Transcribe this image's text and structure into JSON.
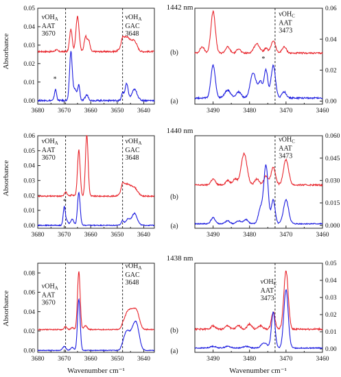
{
  "figure": {
    "y_axis_label": "Absorbance",
    "x_axis_label": "Wavenumber cm⁻¹"
  },
  "colors": {
    "trace_b": "#e8232a",
    "trace_a": "#1a1adf",
    "axis": "#222222",
    "marker": "#666666"
  },
  "chart_data": [
    {
      "type": "line",
      "row": 0,
      "side": "left",
      "title": "1442 nm",
      "xlim": [
        3680,
        3636
      ],
      "ylim": [
        -0.002,
        0.05
      ],
      "xticks": [
        3680,
        3670,
        3660,
        3650,
        3640
      ],
      "yticks": [
        "0.00",
        "0.01",
        "0.02",
        "0.03",
        "0.04",
        "0.05"
      ],
      "vlines": [
        3669.5,
        3648
      ],
      "annotations": [
        {
          "x": 3678.5,
          "y": 0.044,
          "lines": [
            "νOH",
            "AAT",
            "3670"
          ],
          "sub": "A"
        },
        {
          "x": 3647.0,
          "y": 0.044,
          "lines": [
            "νOH",
            "GAC",
            "3648"
          ],
          "sub": "A"
        }
      ],
      "series_labels": [
        {
          "text": "(b)",
          "ref": "b"
        },
        {
          "text": "(a)",
          "ref": "a"
        }
      ],
      "asterisks": [
        {
          "x": 3673.5,
          "y": 0.0105
        }
      ],
      "series": [
        {
          "key": "b",
          "baseline": 0.0265,
          "noise": 0.0004,
          "peaks": [
            [
              3673,
              0.001,
              0.5
            ],
            [
              3667.5,
              0.012,
              0.5
            ],
            [
              3665.0,
              0.019,
              0.6
            ],
            [
              3662.0,
              0.008,
              0.5
            ],
            [
              3660.8,
              0.006,
              0.5
            ],
            [
              3648.0,
              0.003,
              0.5
            ],
            [
              3646.5,
              0.008,
              1.5
            ],
            [
              3643.5,
              0.005,
              1.0
            ]
          ]
        },
        {
          "key": "a",
          "baseline": 0.0,
          "noise": 0.0004,
          "peaks": [
            [
              3673.3,
              0.006,
              0.4
            ],
            [
              3667.5,
              0.026,
              0.5
            ],
            [
              3666.0,
              0.006,
              0.7
            ],
            [
              3664.5,
              0.008,
              0.4
            ],
            [
              3661.5,
              0.003,
              0.6
            ],
            [
              3648.0,
              0.004,
              0.4
            ],
            [
              3646.5,
              0.009,
              0.6
            ],
            [
              3643.5,
              0.006,
              1.0
            ]
          ]
        }
      ]
    },
    {
      "type": "line",
      "row": 0,
      "side": "right",
      "title": "",
      "xlim": [
        3495,
        3460
      ],
      "ylim": [
        -0.002,
        0.06
      ],
      "xticks": [
        3490,
        3480,
        3470,
        3460
      ],
      "yticks": [
        "0.00",
        "0.02",
        "0.04",
        "0.06"
      ],
      "vlines": [
        3473
      ],
      "annotations": [
        {
          "x": 3472,
          "y": 0.055,
          "lines": [
            "νOH",
            "AAT",
            "3473"
          ],
          "sub": "C"
        }
      ],
      "series_labels": [],
      "asterisks": [
        {
          "x": 3476.2,
          "y": 0.026
        }
      ],
      "series": [
        {
          "key": "b",
          "baseline": 0.031,
          "noise": 0.0005,
          "peaks": [
            [
              3490,
              0.027,
              0.6
            ],
            [
              3493,
              0.004,
              0.6
            ],
            [
              3486,
              0.004,
              0.6
            ],
            [
              3483,
              0.003,
              0.5
            ],
            [
              3478,
              0.006,
              0.8
            ],
            [
              3475.5,
              0.003,
              0.5
            ],
            [
              3473.5,
              0.008,
              0.6
            ],
            [
              3470.5,
              0.004,
              0.6
            ]
          ]
        },
        {
          "key": "a",
          "baseline": 0.002,
          "noise": 0.0005,
          "peaks": [
            [
              3490,
              0.021,
              0.6
            ],
            [
              3486,
              0.005,
              0.8
            ],
            [
              3483,
              0.004,
              0.7
            ],
            [
              3479,
              0.016,
              0.8
            ],
            [
              3477,
              0.01,
              0.6
            ],
            [
              3475.5,
              0.018,
              0.5
            ],
            [
              3473.5,
              0.021,
              0.6
            ],
            [
              3470.5,
              0.004,
              0.6
            ]
          ]
        }
      ]
    },
    {
      "type": "line",
      "row": 1,
      "side": "left",
      "title": "1440 nm",
      "xlim": [
        3680,
        3636
      ],
      "ylim": [
        -0.002,
        0.06
      ],
      "xticks": [
        3680,
        3670,
        3660,
        3650,
        3640
      ],
      "yticks": [
        "0.00",
        "0.01",
        "0.02",
        "0.03",
        "0.04",
        "0.05",
        "0.06"
      ],
      "vlines": [
        3669.5,
        3648
      ],
      "annotations": [
        {
          "x": 3678.5,
          "y": 0.055,
          "lines": [
            "νOH",
            "AAT",
            "3670"
          ],
          "sub": "A"
        },
        {
          "x": 3647.0,
          "y": 0.055,
          "lines": [
            "νOH",
            "GAC",
            "3648"
          ],
          "sub": "A"
        }
      ],
      "series_labels": [
        {
          "text": "(b)",
          "ref": "b"
        },
        {
          "text": "(a)",
          "ref": "a"
        }
      ],
      "asterisks": [
        {
          "x": 3669.8,
          "y": 0.0145
        }
      ],
      "series": [
        {
          "key": "b",
          "baseline": 0.0195,
          "noise": 0.0004,
          "peaks": [
            [
              3669.5,
              0.003,
              0.5
            ],
            [
              3667,
              0.001,
              0.5
            ],
            [
              3664.5,
              0.031,
              0.5
            ],
            [
              3661.5,
              0.041,
              0.5
            ],
            [
              3648.0,
              0.004,
              0.5
            ],
            [
              3646.5,
              0.008,
              1.5
            ],
            [
              3643.5,
              0.005,
              1.2
            ]
          ]
        },
        {
          "key": "a",
          "baseline": 0.0,
          "noise": 0.0003,
          "peaks": [
            [
              3670.0,
              0.012,
              0.4
            ],
            [
              3669.0,
              0.003,
              0.5
            ],
            [
              3667.0,
              0.004,
              0.6
            ],
            [
              3664.5,
              0.022,
              0.5
            ],
            [
              3648.0,
              0.003,
              0.5
            ],
            [
              3646.0,
              0.004,
              0.8
            ],
            [
              3643.5,
              0.008,
              1.0
            ]
          ]
        }
      ]
    },
    {
      "type": "line",
      "row": 1,
      "side": "right",
      "title": "",
      "xlim": [
        3495,
        3460
      ],
      "ylim": [
        -0.002,
        0.06
      ],
      "xticks": [
        3490,
        3480,
        3470,
        3460
      ],
      "yticks": [
        "0.000",
        "0.015",
        "0.030",
        "0.045",
        "0.060"
      ],
      "vlines": [
        3473
      ],
      "annotations": [
        {
          "x": 3472,
          "y": 0.056,
          "lines": [
            "νOH",
            "AAT",
            "3473"
          ],
          "sub": "C"
        }
      ],
      "series_labels": [],
      "asterisks": [],
      "series": [
        {
          "key": "b",
          "baseline": 0.027,
          "noise": 0.0005,
          "peaks": [
            [
              3490,
              0.004,
              0.6
            ],
            [
              3486,
              0.003,
              0.6
            ],
            [
              3484,
              0.004,
              0.6
            ],
            [
              3481.5,
              0.021,
              0.8
            ],
            [
              3478,
              0.004,
              0.6
            ],
            [
              3475.5,
              0.006,
              0.6
            ],
            [
              3473.5,
              0.012,
              0.6
            ],
            [
              3470,
              0.017,
              0.7
            ]
          ]
        },
        {
          "key": "a",
          "baseline": 0.001,
          "noise": 0.0004,
          "peaks": [
            [
              3490,
              0.004,
              0.6
            ],
            [
              3486,
              0.002,
              0.6
            ],
            [
              3483,
              0.002,
              0.6
            ],
            [
              3481,
              0.003,
              0.6
            ],
            [
              3477,
              0.01,
              0.6
            ],
            [
              3475.5,
              0.039,
              0.6
            ],
            [
              3473.5,
              0.016,
              0.5
            ],
            [
              3470,
              0.016,
              0.7
            ]
          ]
        }
      ]
    },
    {
      "type": "line",
      "row": 2,
      "side": "left",
      "title": "1438 nm",
      "xlim": [
        3680,
        3636
      ],
      "ylim": [
        -0.002,
        0.09
      ],
      "xticks": [
        3680,
        3670,
        3660,
        3650,
        3640
      ],
      "yticks": [
        "0.00",
        "0.02",
        "0.04",
        "0.06",
        "0.08"
      ],
      "vlines": [
        3669.5,
        3648
      ],
      "annotations": [
        {
          "x": 3678.5,
          "y": 0.064,
          "lines": [
            "νOH",
            "AAT",
            "3670"
          ],
          "sub": "A"
        },
        {
          "x": 3647.0,
          "y": 0.085,
          "lines": [
            "νOH",
            "GAC",
            "3648"
          ],
          "sub": "A"
        }
      ],
      "series_labels": [
        {
          "text": "(b)",
          "ref": "b"
        },
        {
          "text": "(a)",
          "ref": "a"
        }
      ],
      "asterisks": [],
      "series": [
        {
          "key": "b",
          "baseline": 0.0215,
          "noise": 0.0005,
          "peaks": [
            [
              3669.5,
              0.003,
              0.5
            ],
            [
              3667.0,
              0.002,
              0.5
            ],
            [
              3664.5,
              0.06,
              0.5
            ],
            [
              3662.0,
              0.004,
              0.6
            ],
            [
              3648.0,
              0.003,
              0.5
            ],
            [
              3646.5,
              0.013,
              1.0
            ],
            [
              3644.5,
              0.018,
              1.2
            ],
            [
              3642.5,
              0.015,
              1.0
            ]
          ]
        },
        {
          "key": "a",
          "baseline": 0.0,
          "noise": 0.0004,
          "peaks": [
            [
              3670.0,
              0.004,
              0.6
            ],
            [
              3667.0,
              0.003,
              0.6
            ],
            [
              3664.5,
              0.053,
              0.5
            ],
            [
              3648.0,
              0.003,
              0.6
            ],
            [
              3646.5,
              0.018,
              1.0
            ],
            [
              3644.0,
              0.02,
              1.2
            ],
            [
              3642.5,
              0.018,
              1.0
            ]
          ]
        }
      ]
    },
    {
      "type": "line",
      "row": 2,
      "side": "right",
      "title": "",
      "xlim": [
        3495,
        3460
      ],
      "ylim": [
        -0.002,
        0.05
      ],
      "xticks": [
        3490,
        3480,
        3470,
        3460
      ],
      "yticks": [
        "0.00",
        "0.01",
        "0.02",
        "0.03",
        "0.04",
        "0.05"
      ],
      "vlines": [
        3473
      ],
      "annotations": [
        {
          "x": 3477,
          "y": 0.038,
          "lines": [
            "νOH",
            "AAT",
            "3473"
          ],
          "sub": "C"
        }
      ],
      "series_labels": [],
      "asterisks": [],
      "series": [
        {
          "key": "b",
          "baseline": 0.0115,
          "noise": 0.0005,
          "peaks": [
            [
              3490,
              0.002,
              0.6
            ],
            [
              3486,
              0.002,
              0.6
            ],
            [
              3483,
              0.002,
              0.6
            ],
            [
              3480,
              0.003,
              0.6
            ],
            [
              3477,
              0.002,
              0.6
            ],
            [
              3473.5,
              0.01,
              0.5
            ],
            [
              3470,
              0.034,
              0.6
            ]
          ]
        },
        {
          "key": "a",
          "baseline": 0.0005,
          "noise": 0.0003,
          "peaks": [
            [
              3490,
              0.001,
              0.8
            ],
            [
              3486,
              0.001,
              0.8
            ],
            [
              3481,
              0.001,
              0.8
            ],
            [
              3476,
              0.003,
              0.8
            ],
            [
              3473.5,
              0.021,
              0.5
            ],
            [
              3470,
              0.034,
              0.6
            ]
          ]
        }
      ]
    }
  ]
}
